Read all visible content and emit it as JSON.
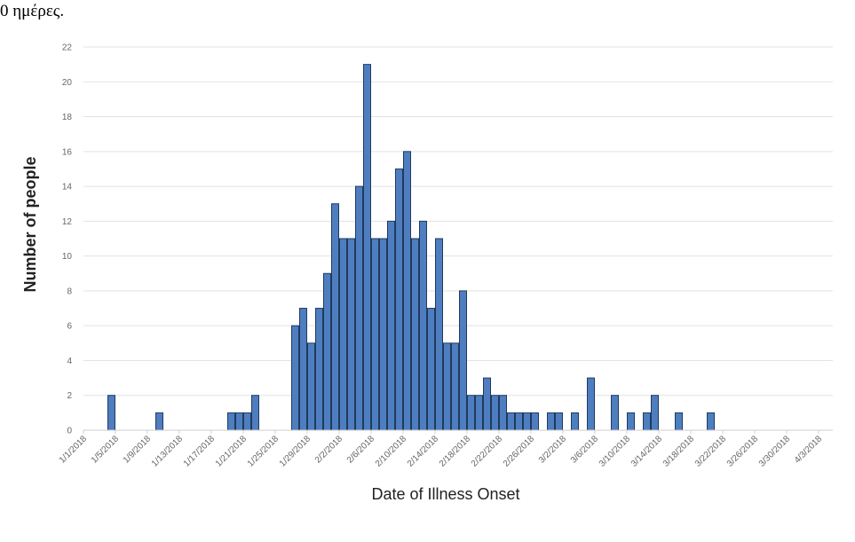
{
  "page": {
    "caption_fragment": "0 ημέρες."
  },
  "chart_data": {
    "type": "bar",
    "title": "",
    "xlabel": "Date of Illness Onset",
    "ylabel": "Number of people",
    "ylim": [
      0,
      22
    ],
    "yticks": [
      0,
      2,
      4,
      6,
      8,
      10,
      12,
      14,
      16,
      18,
      20,
      22
    ],
    "grid": true,
    "bar_color": "#4f7ec0",
    "bar_edge_color": "#1f3a5f",
    "x_tick_labels": [
      "1/1/2018",
      "1/5/2018",
      "1/9/2018",
      "1/13/2018",
      "1/17/2018",
      "1/21/2018",
      "1/25/2018",
      "1/29/2018",
      "2/2/2018",
      "2/6/2018",
      "2/10/2018",
      "2/14/2018",
      "2/18/2018",
      "2/22/2018",
      "2/26/2018",
      "3/2/2018",
      "3/6/2018",
      "3/10/2018",
      "3/14/2018",
      "3/18/2018",
      "3/22/2018",
      "3/26/2018",
      "3/30/2018",
      "4/3/2018"
    ],
    "x_range": [
      "1/1/2018",
      "4/3/2018"
    ],
    "bars": [
      {
        "date": "1/4/2018",
        "value": 2
      },
      {
        "date": "1/10/2018",
        "value": 1
      },
      {
        "date": "1/19/2018",
        "value": 1
      },
      {
        "date": "1/20/2018",
        "value": 1
      },
      {
        "date": "1/21/2018",
        "value": 1
      },
      {
        "date": "1/22/2018",
        "value": 2
      },
      {
        "date": "1/23/2018",
        "value": 0
      },
      {
        "date": "1/24/2018",
        "value": 0
      },
      {
        "date": "1/25/2018",
        "value": 0
      },
      {
        "date": "1/26/2018",
        "value": 0
      },
      {
        "date": "1/27/2018",
        "value": 6
      },
      {
        "date": "1/28/2018",
        "value": 7
      },
      {
        "date": "1/29/2018",
        "value": 5
      },
      {
        "date": "1/30/2018",
        "value": 7
      },
      {
        "date": "1/31/2018",
        "value": 9
      },
      {
        "date": "2/1/2018",
        "value": 13
      },
      {
        "date": "2/2/2018",
        "value": 11
      },
      {
        "date": "2/3/2018",
        "value": 11
      },
      {
        "date": "2/4/2018",
        "value": 14
      },
      {
        "date": "2/5/2018",
        "value": 21
      },
      {
        "date": "2/6/2018",
        "value": 11
      },
      {
        "date": "2/7/2018",
        "value": 11
      },
      {
        "date": "2/8/2018",
        "value": 12
      },
      {
        "date": "2/9/2018",
        "value": 15
      },
      {
        "date": "2/10/2018",
        "value": 16
      },
      {
        "date": "2/11/2018",
        "value": 11
      },
      {
        "date": "2/12/2018",
        "value": 12
      },
      {
        "date": "2/13/2018",
        "value": 7
      },
      {
        "date": "2/14/2018",
        "value": 11
      },
      {
        "date": "2/15/2018",
        "value": 5
      },
      {
        "date": "2/16/2018",
        "value": 5
      },
      {
        "date": "2/17/2018",
        "value": 8
      },
      {
        "date": "2/18/2018",
        "value": 2
      },
      {
        "date": "2/19/2018",
        "value": 2
      },
      {
        "date": "2/20/2018",
        "value": 3
      },
      {
        "date": "2/21/2018",
        "value": 2
      },
      {
        "date": "2/22/2018",
        "value": 2
      },
      {
        "date": "2/23/2018",
        "value": 1
      },
      {
        "date": "2/24/2018",
        "value": 1
      },
      {
        "date": "2/25/2018",
        "value": 1
      },
      {
        "date": "2/26/2018",
        "value": 1
      },
      {
        "date": "2/28/2018",
        "value": 1
      },
      {
        "date": "3/1/2018",
        "value": 1
      },
      {
        "date": "3/3/2018",
        "value": 1
      },
      {
        "date": "3/5/2018",
        "value": 3
      },
      {
        "date": "3/8/2018",
        "value": 2
      },
      {
        "date": "3/10/2018",
        "value": 1
      },
      {
        "date": "3/12/2018",
        "value": 1
      },
      {
        "date": "3/13/2018",
        "value": 2
      },
      {
        "date": "3/16/2018",
        "value": 1
      },
      {
        "date": "3/20/2018",
        "value": 1
      }
    ]
  }
}
